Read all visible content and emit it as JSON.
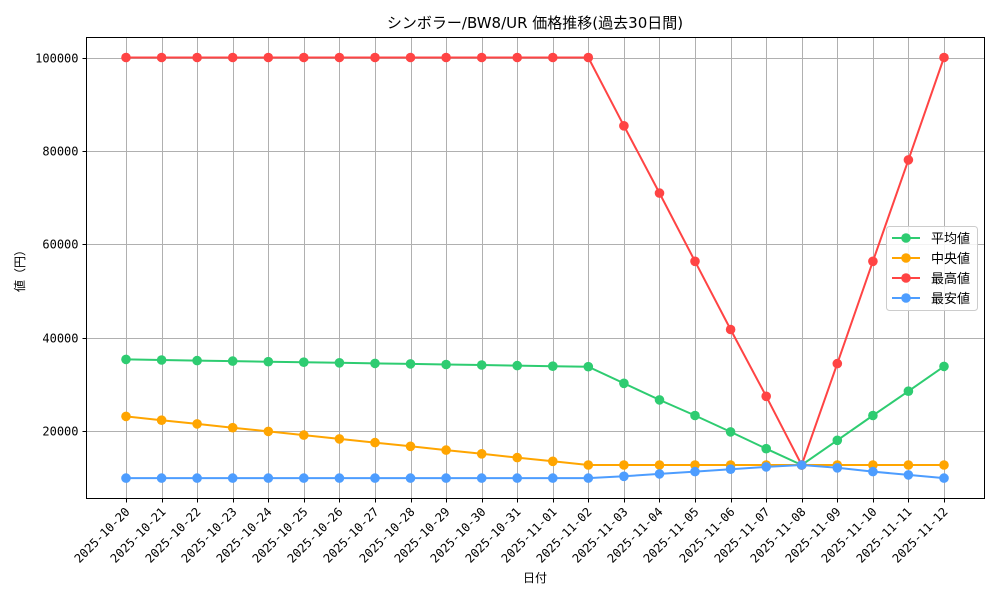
{
  "chart_data": {
    "type": "line",
    "title": "シンボラー/BW8/UR 価格推移(過去30日間)",
    "xlabel": "日付",
    "ylabel": "値（円）",
    "ylim": [
      5640,
      104290
    ],
    "yticks": [
      20000,
      40000,
      60000,
      80000,
      100000
    ],
    "grid": true,
    "legend_position": "center right",
    "categories": [
      "2025-10-20",
      "2025-10-21",
      "2025-10-22",
      "2025-10-23",
      "2025-10-24",
      "2025-10-25",
      "2025-10-26",
      "2025-10-27",
      "2025-10-28",
      "2025-10-29",
      "2025-10-30",
      "2025-10-31",
      "2025-11-01",
      "2025-11-02",
      "2025-11-03",
      "2025-11-04",
      "2025-11-05",
      "2025-11-06",
      "2025-11-07",
      "2025-11-08",
      "2025-11-09",
      "2025-11-10",
      "2025-11-11",
      "2025-11-12"
    ],
    "series": [
      {
        "name": "平均値",
        "color": "#2ecc71",
        "values": [
          35400,
          35280,
          35160,
          35040,
          34920,
          34800,
          34680,
          34560,
          34440,
          34320,
          34200,
          34080,
          33960,
          33840,
          30300,
          26730,
          23400,
          19900,
          16300,
          12800,
          18100,
          23400,
          28600,
          33900
        ]
      },
      {
        "name": "中央値",
        "color": "#ffa500",
        "values": [
          23200,
          22400,
          21600,
          20800,
          20000,
          19200,
          18400,
          17600,
          16800,
          16000,
          15200,
          14400,
          13600,
          12800,
          12800,
          12800,
          12800,
          12800,
          12800,
          12800,
          12800,
          12800,
          12800,
          12800
        ]
      },
      {
        "name": "最高値",
        "color": "#ff4444",
        "values": [
          100000,
          100000,
          100000,
          100000,
          100000,
          100000,
          100000,
          100000,
          100000,
          100000,
          100000,
          100000,
          100000,
          100000,
          85400,
          71000,
          56400,
          41800,
          27500,
          12800,
          34500,
          56400,
          78100,
          100000
        ]
      },
      {
        "name": "最安値",
        "color": "#4d9dff",
        "values": [
          10000,
          10000,
          10000,
          10000,
          10000,
          10000,
          10000,
          10000,
          10000,
          10000,
          10000,
          10000,
          10000,
          10000,
          10400,
          10900,
          11400,
          11900,
          12400,
          12800,
          12200,
          11400,
          10700,
          10000
        ]
      }
    ]
  }
}
